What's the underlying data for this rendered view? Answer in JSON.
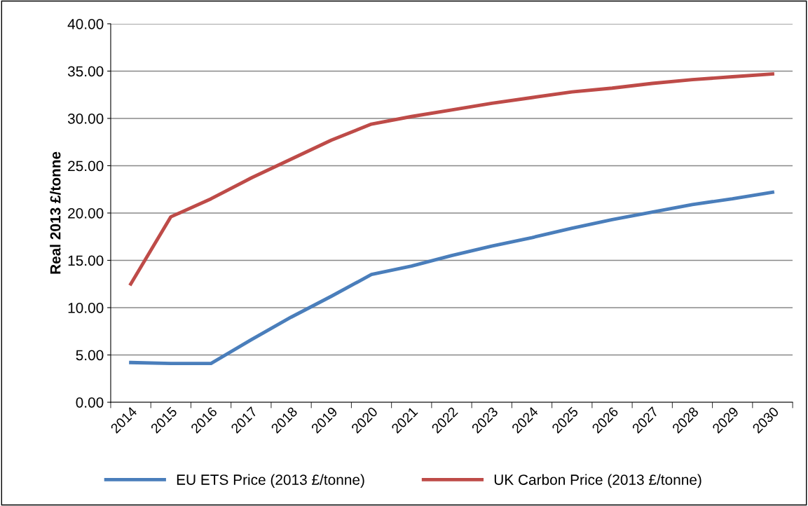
{
  "chart_data": {
    "type": "line",
    "ylabel": "Real 2013 £/tonne",
    "categories": [
      "2014",
      "2015",
      "2016",
      "2017",
      "2018",
      "2019",
      "2020",
      "2021",
      "2022",
      "2023",
      "2024",
      "2025",
      "2026",
      "2027",
      "2028",
      "2029",
      "2030"
    ],
    "series": [
      {
        "name": "EU ETS Price (2013 £/tonne)",
        "color": "#4a7ebb",
        "values": [
          4.2,
          4.1,
          4.1,
          6.6,
          9.0,
          11.2,
          13.5,
          14.4,
          15.5,
          16.5,
          17.4,
          18.4,
          19.3,
          20.1,
          20.9,
          21.5,
          22.2
        ]
      },
      {
        "name": "UK Carbon Price (2013 £/tonne)",
        "color": "#be4b48",
        "values": [
          12.5,
          19.6,
          21.5,
          23.7,
          25.7,
          27.7,
          29.4,
          30.2,
          30.9,
          31.6,
          32.2,
          32.8,
          33.2,
          33.7,
          34.1,
          34.4,
          34.7
        ]
      }
    ],
    "ylim": [
      0,
      40
    ],
    "yticks": [
      {
        "value": 0,
        "label": "0.00"
      },
      {
        "value": 5,
        "label": "5.00"
      },
      {
        "value": 10,
        "label": "10.00"
      },
      {
        "value": 15,
        "label": "15.00"
      },
      {
        "value": 20,
        "label": "20.00"
      },
      {
        "value": 25,
        "label": "25.00"
      },
      {
        "value": 30,
        "label": "30.00"
      },
      {
        "value": 35,
        "label": "35.00"
      },
      {
        "value": 40,
        "label": "40.00"
      }
    ],
    "grid": "y",
    "legend": "bottom",
    "marker": "none",
    "line_style": "solid"
  }
}
